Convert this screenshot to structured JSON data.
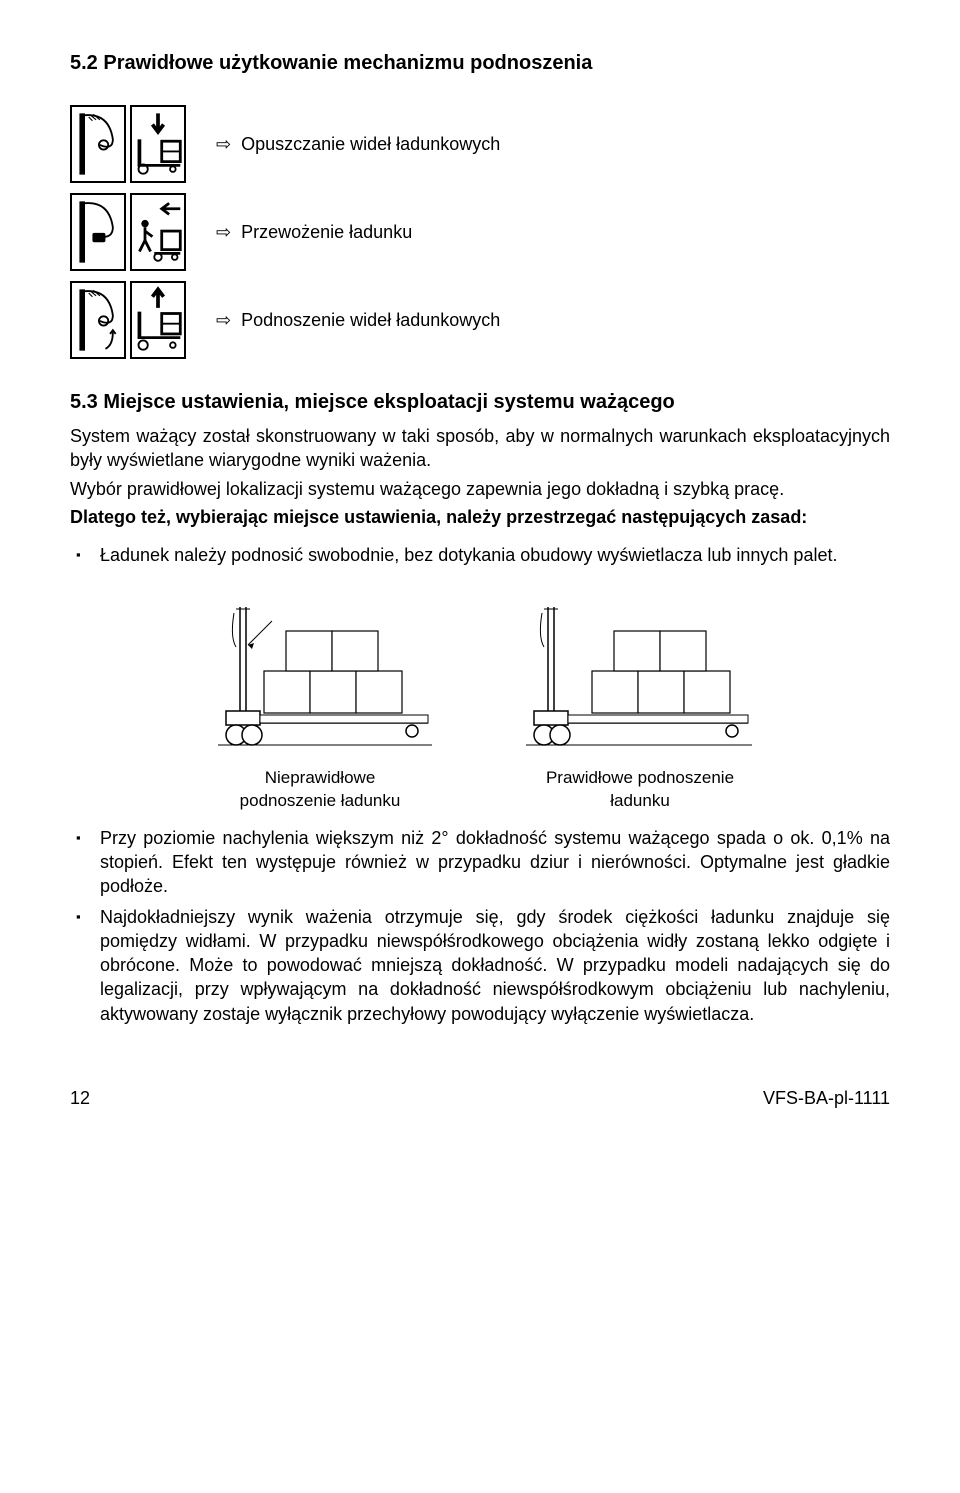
{
  "heading": "5.2   Prawidłowe użytkowanie mechanizmu podnoszenia",
  "rows": [
    {
      "label": "Opuszczanie wideł ładunkowych"
    },
    {
      "label": "Przewożenie ładunku"
    },
    {
      "label": "Podnoszenie wideł ładunkowych"
    }
  ],
  "arrow_glyph": "⇨",
  "subheading": "5.3   Miejsce ustawienia, miejsce eksploatacji systemu ważącego",
  "para1": "System ważący został skonstruowany w taki sposób, aby w normalnych warunkach eksploatacyjnych były wyświetlane wiarygodne wyniki ważenia.",
  "para2": "Wybór prawidłowej lokalizacji systemu ważącego zapewnia jego dokładną i szybką pracę.",
  "para3_bold": "Dlatego też, wybierając miejsce ustawienia, należy przestrzegać następujących zasad:",
  "bullets1": [
    "Ładunek należy podnosić swobodnie, bez dotykania obudowy wyświetlacza lub innych palet."
  ],
  "diagram": {
    "left_caption": "Nieprawidłowe\npodnoszenie ładunku",
    "right_caption": "Prawidłowe podnoszenie\nładunku",
    "stroke": "#000000",
    "bg": "#ffffff"
  },
  "bullets2": [
    "Przy poziomie nachylenia większym niż 2° dokładność systemu ważącego spada o ok. 0,1% na stopień. Efekt ten występuje również w przypadku dziur i nierówności. Optymalne jest gładkie podłoże.",
    "Najdokładniejszy wynik ważenia otrzymuje się, gdy środek ciężkości ładunku znajduje się pomiędzy widłami. W przypadku niewspółśrodkowego obciążenia widły zostaną lekko odgięte i obrócone. Może to powodować mniejszą dokładność. W przypadku modeli nadających się do legalizacji, przy wpływającym na dokładność niewspółśrodkowym obciążeniu lub nachyleniu, aktywowany zostaje wyłącznik przechyłowy powodujący wyłączenie wyświetlacza."
  ],
  "footer": {
    "page": "12",
    "code": "VFS-BA-pl-1111"
  }
}
